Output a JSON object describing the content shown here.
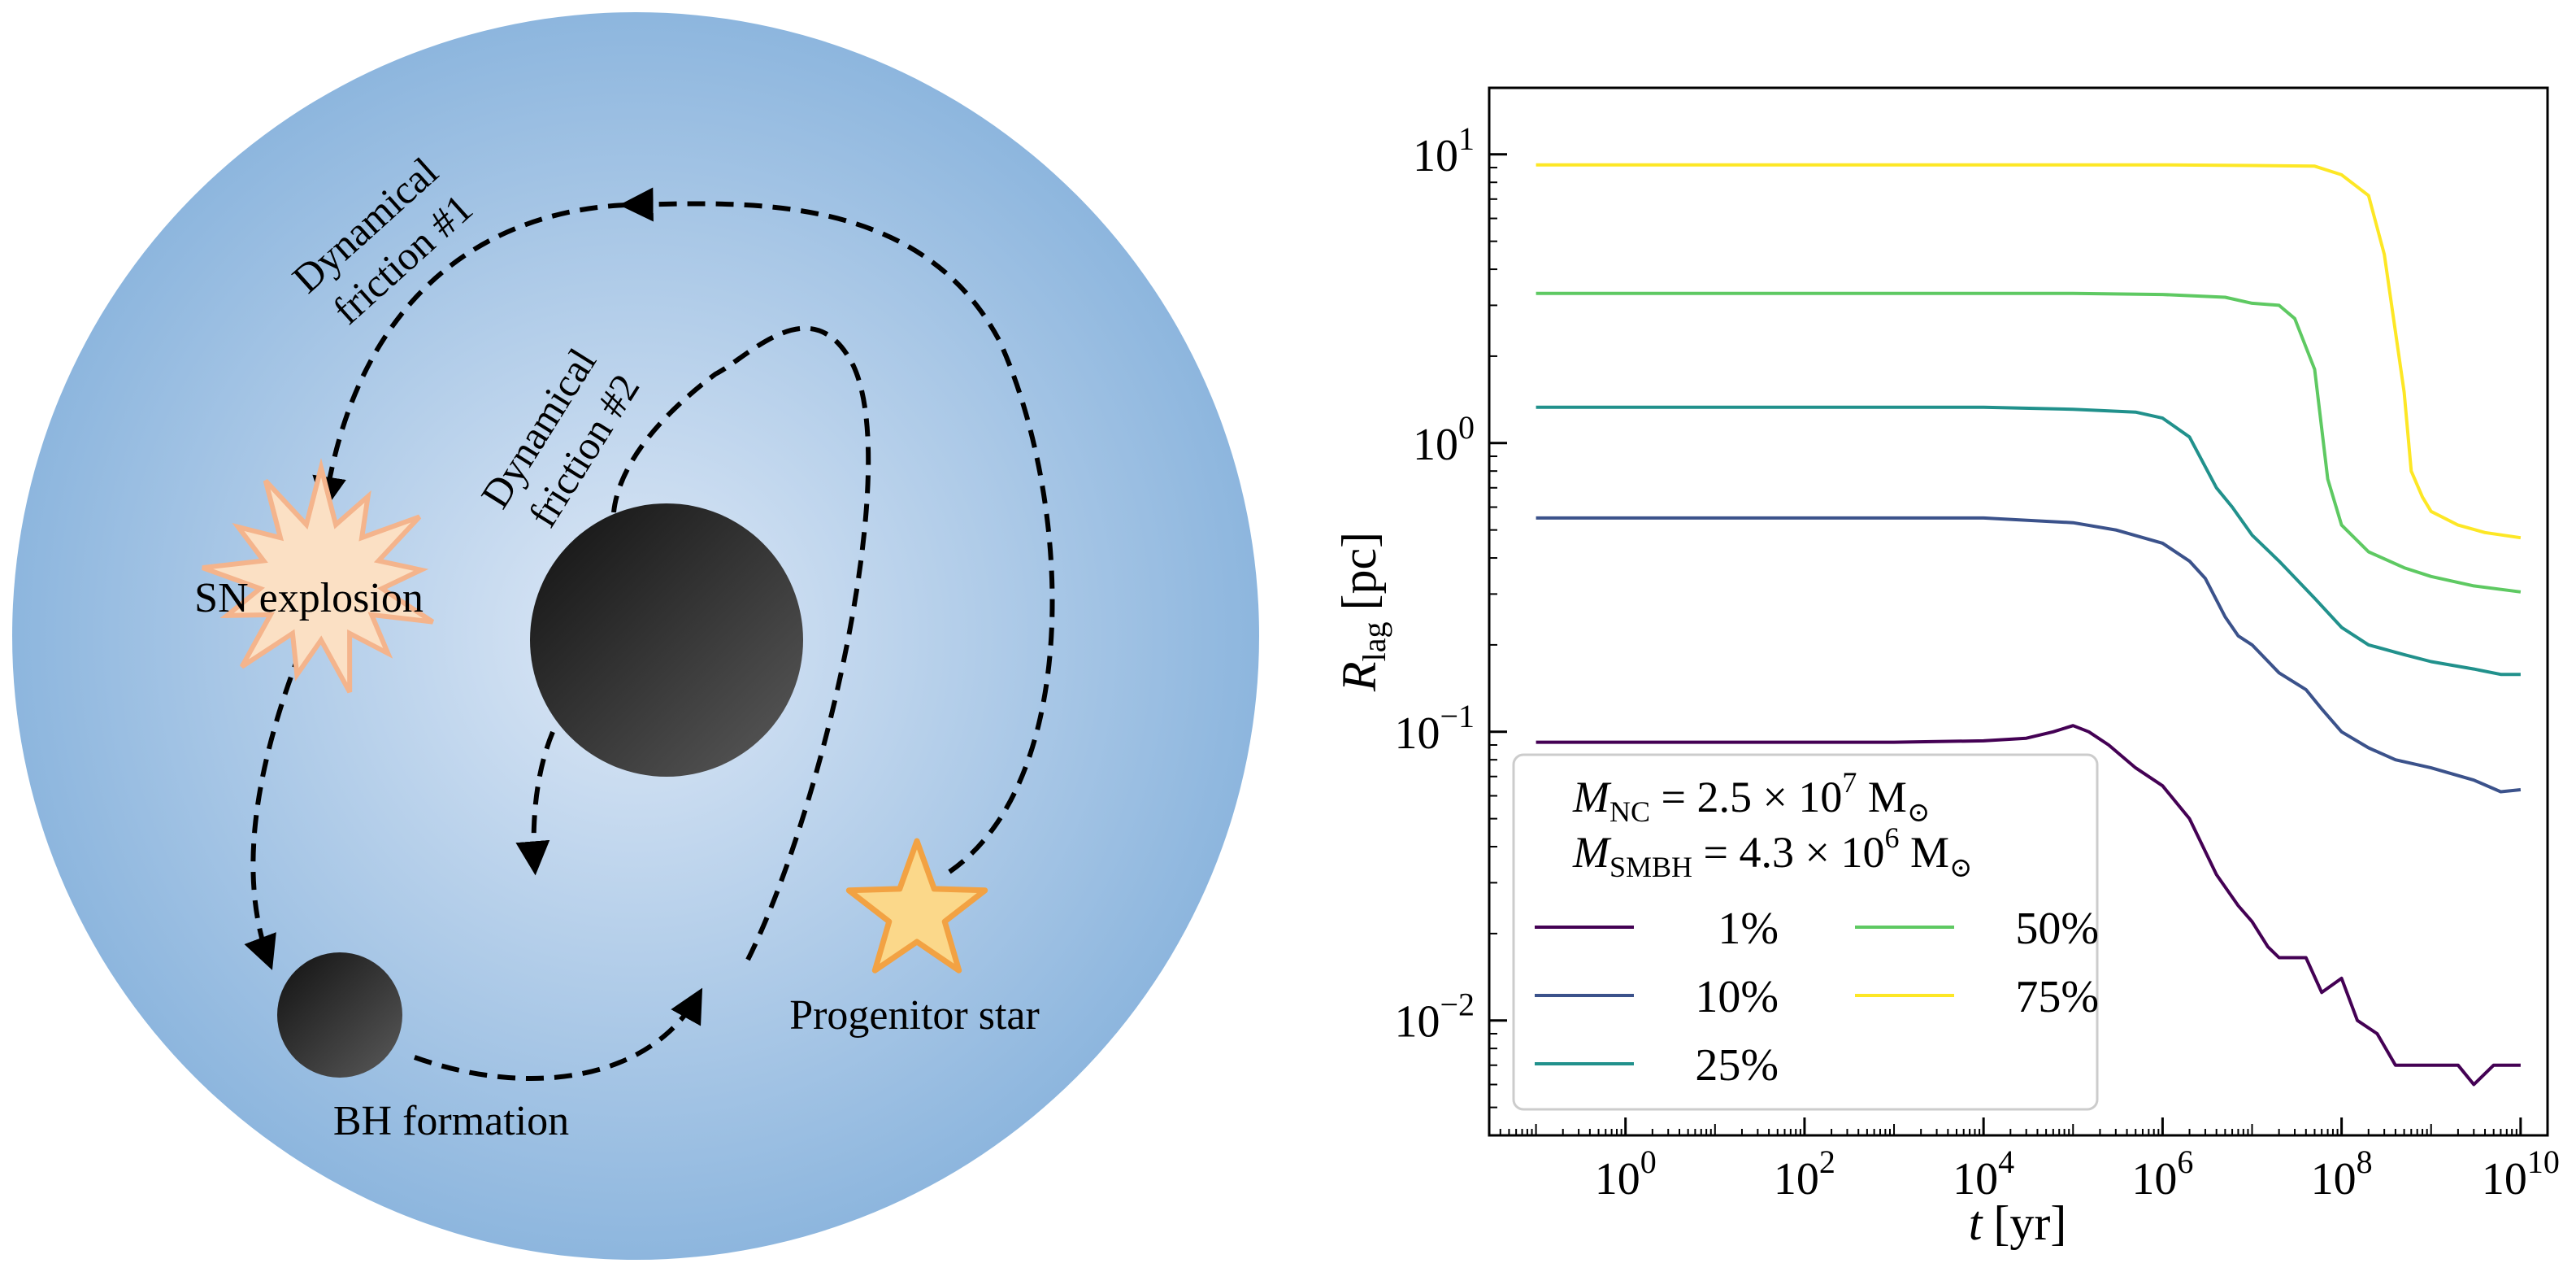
{
  "diagram": {
    "labels": {
      "dynamical_friction_1": [
        "Dynamical",
        "friction #1"
      ],
      "dynamical_friction_2": [
        "Dynamical",
        "friction #2"
      ],
      "sn_explosion": "SN explosion",
      "bh_formation": "BH formation",
      "progenitor_star": "Progenitor star"
    },
    "colors": {
      "cluster_center": "#dde8f6",
      "cluster_edge": "#8db6de",
      "smbh_light": "#5a5a5a",
      "smbh_dark": "#111111",
      "star_fill": "#fbd88a",
      "star_stroke": "#f2a243",
      "explosion_fill": "#fbe0c4",
      "explosion_stroke": "#f4b48c"
    }
  },
  "chart_data": {
    "type": "line",
    "x_scale": "log",
    "y_scale": "log",
    "xlim": [
      0.03,
      20000000000
    ],
    "ylim": [
      0.004,
      17
    ],
    "xlabel": {
      "var": "t",
      "unit": "[yr]"
    },
    "ylabel": {
      "var": "R",
      "sub": "lag",
      "unit": "[pc]"
    },
    "x_ticks": [
      {
        "value": 1,
        "base": "10",
        "exp": "0"
      },
      {
        "value": 100,
        "base": "10",
        "exp": "2"
      },
      {
        "value": 10000,
        "base": "10",
        "exp": "4"
      },
      {
        "value": 1000000,
        "base": "10",
        "exp": "6"
      },
      {
        "value": 100000000,
        "base": "10",
        "exp": "8"
      },
      {
        "value": 10000000000,
        "base": "10",
        "exp": "10"
      }
    ],
    "y_ticks": [
      {
        "value": 0.01,
        "base": "10",
        "exp": "−2"
      },
      {
        "value": 0.1,
        "base": "10",
        "exp": "−1"
      },
      {
        "value": 1,
        "base": "10",
        "exp": "0"
      },
      {
        "value": 10,
        "base": "10",
        "exp": "1"
      }
    ],
    "legend": {
      "placement": "lower-left",
      "title_lines": [
        {
          "var": "M",
          "sub": "NC",
          "text": " = 2.5 × 10",
          "exp": "7",
          "unit": " M",
          "unit_sub": "⊙"
        },
        {
          "var": "M",
          "sub": "SMBH",
          "text": " = 4.3 × 10",
          "exp": "6",
          "unit": " M",
          "unit_sub": "⊙"
        }
      ]
    },
    "series": [
      {
        "name": "1%",
        "color": "#440154",
        "points": [
          [
            0.1,
            0.092
          ],
          [
            1000,
            0.092
          ],
          [
            10000,
            0.093
          ],
          [
            30000,
            0.095
          ],
          [
            60000,
            0.1
          ],
          [
            100000,
            0.105
          ],
          [
            150000,
            0.1
          ],
          [
            250000,
            0.09
          ],
          [
            500000,
            0.075
          ],
          [
            1000000,
            0.065
          ],
          [
            2000000,
            0.05
          ],
          [
            4000000,
            0.032
          ],
          [
            7000000,
            0.025
          ],
          [
            10000000,
            0.022
          ],
          [
            15000000,
            0.018
          ],
          [
            20000000,
            0.0165
          ],
          [
            40000000,
            0.0165
          ],
          [
            60000000,
            0.0125
          ],
          [
            100000000,
            0.014
          ],
          [
            150000000,
            0.01
          ],
          [
            250000000,
            0.009
          ],
          [
            400000000,
            0.007
          ],
          [
            1000000000,
            0.007
          ],
          [
            2000000000,
            0.007
          ],
          [
            3000000000,
            0.006
          ],
          [
            5000000000,
            0.007
          ],
          [
            10000000000,
            0.007
          ]
        ]
      },
      {
        "name": "10%",
        "color": "#3b528b",
        "points": [
          [
            0.1,
            0.55
          ],
          [
            10000,
            0.55
          ],
          [
            100000,
            0.53
          ],
          [
            300000,
            0.5
          ],
          [
            1000000,
            0.45
          ],
          [
            2000000,
            0.39
          ],
          [
            3000000,
            0.34
          ],
          [
            5000000,
            0.25
          ],
          [
            7000000,
            0.215
          ],
          [
            10000000,
            0.2
          ],
          [
            20000000,
            0.16
          ],
          [
            40000000,
            0.14
          ],
          [
            60000000,
            0.12
          ],
          [
            100000000,
            0.1
          ],
          [
            200000000,
            0.088
          ],
          [
            400000000,
            0.08
          ],
          [
            1000000000,
            0.075
          ],
          [
            3000000000,
            0.068
          ],
          [
            6000000000,
            0.062
          ],
          [
            10000000000,
            0.063
          ]
        ]
      },
      {
        "name": "25%",
        "color": "#21918c",
        "points": [
          [
            0.1,
            1.33
          ],
          [
            10000,
            1.33
          ],
          [
            100000,
            1.31
          ],
          [
            500000,
            1.28
          ],
          [
            1000000,
            1.22
          ],
          [
            2000000,
            1.05
          ],
          [
            4000000,
            0.7
          ],
          [
            6000000,
            0.6
          ],
          [
            10000000,
            0.48
          ],
          [
            20000000,
            0.39
          ],
          [
            50000000,
            0.29
          ],
          [
            100000000,
            0.23
          ],
          [
            200000000,
            0.2
          ],
          [
            500000000,
            0.185
          ],
          [
            1000000000,
            0.175
          ],
          [
            3000000000,
            0.165
          ],
          [
            6000000000,
            0.158
          ],
          [
            10000000000,
            0.158
          ]
        ]
      },
      {
        "name": "50%",
        "color": "#5ec962",
        "points": [
          [
            0.1,
            3.3
          ],
          [
            100000,
            3.3
          ],
          [
            1000000,
            3.27
          ],
          [
            5000000,
            3.2
          ],
          [
            10000000,
            3.05
          ],
          [
            20000000,
            3.0
          ],
          [
            30000000,
            2.7
          ],
          [
            50000000,
            1.8
          ],
          [
            70000000,
            0.75
          ],
          [
            100000000,
            0.52
          ],
          [
            200000000,
            0.42
          ],
          [
            500000000,
            0.37
          ],
          [
            1000000000,
            0.345
          ],
          [
            3000000000,
            0.32
          ],
          [
            10000000000,
            0.305
          ]
        ]
      },
      {
        "name": "75%",
        "color": "#fde725",
        "points": [
          [
            0.1,
            9.2
          ],
          [
            1000000,
            9.2
          ],
          [
            10000000,
            9.15
          ],
          [
            50000000,
            9.1
          ],
          [
            100000000,
            8.5
          ],
          [
            200000000,
            7.2
          ],
          [
            300000000,
            4.5
          ],
          [
            500000000,
            1.5
          ],
          [
            600000000,
            0.8
          ],
          [
            800000000,
            0.65
          ],
          [
            1000000000,
            0.58
          ],
          [
            2000000000,
            0.52
          ],
          [
            4000000000,
            0.49
          ],
          [
            10000000000,
            0.47
          ]
        ]
      }
    ]
  }
}
